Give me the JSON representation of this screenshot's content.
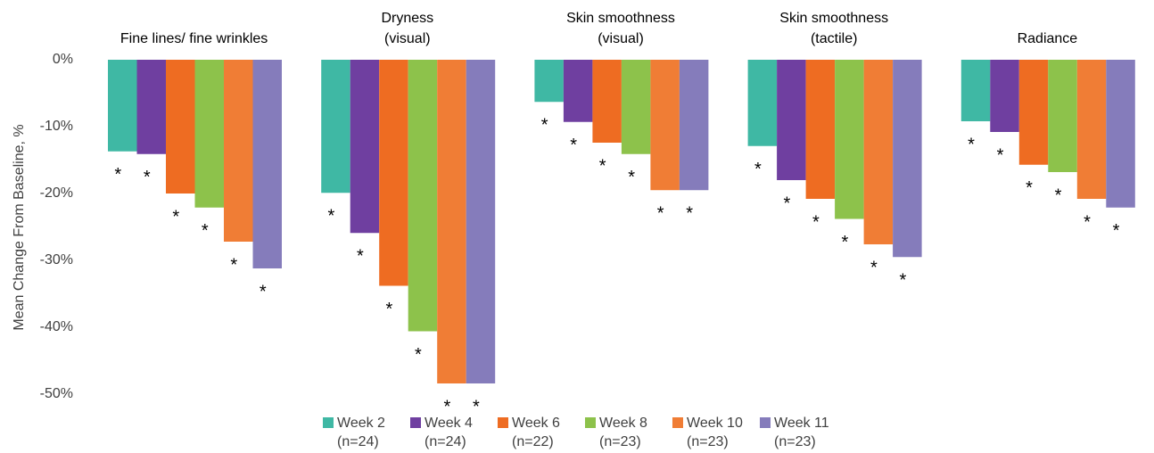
{
  "chart_data": {
    "type": "bar",
    "ylabel": "Mean Change From Baseline, %",
    "categories": [
      [
        "Fine lines/ fine wrinkles"
      ],
      [
        "Dryness",
        "(visual)"
      ],
      [
        "Skin smoothness",
        "(visual)"
      ],
      [
        "Skin smoothness",
        "(tactile)"
      ],
      [
        "Radiance"
      ]
    ],
    "series": [
      {
        "name": "Week 2",
        "n": "(n=24)",
        "color": "#3fb8a4",
        "values": [
          -13.7,
          -19.9,
          -6.3,
          -12.9,
          -9.2
        ],
        "significance": [
          "*",
          "*",
          "*",
          "*",
          "*"
        ]
      },
      {
        "name": "Week 4",
        "n": "(n=24)",
        "color": "#6f3fa0",
        "values": [
          -14.1,
          -25.9,
          -9.3,
          -18.0,
          -10.8
        ],
        "significance": [
          "*",
          "*",
          "*",
          "*",
          "*"
        ]
      },
      {
        "name": "Week 6",
        "n": "(n=22)",
        "color": "#ee6c22",
        "values": [
          -20.0,
          -33.8,
          -12.4,
          -20.8,
          -15.7
        ],
        "significance": [
          "*",
          "*",
          "*",
          "*",
          "*"
        ]
      },
      {
        "name": "Week 8",
        "n": "(n=23)",
        "color": "#8dc24b",
        "values": [
          -22.1,
          -40.6,
          -14.1,
          -23.8,
          -16.8
        ],
        "significance": [
          "*",
          "*",
          "*",
          "*",
          "*"
        ]
      },
      {
        "name": "Week 10",
        "n": "(n=23)",
        "color": "#f07d35",
        "values": [
          -27.2,
          -48.4,
          -19.5,
          -27.6,
          -20.8
        ],
        "significance": [
          "*",
          "*",
          "*",
          "*",
          "*"
        ]
      },
      {
        "name": "Week 11",
        "n": "(n=23)",
        "color": "#857cbb",
        "values": [
          -31.2,
          -48.4,
          -19.5,
          -29.5,
          -22.1
        ],
        "significance": [
          "*",
          "*",
          "*",
          "*",
          "*"
        ]
      }
    ],
    "ylim": [
      -50,
      0
    ],
    "yticks": [
      {
        "value": 0,
        "label": "0%"
      },
      {
        "value": -10,
        "label": "-10%"
      },
      {
        "value": -20,
        "label": "-20%"
      },
      {
        "value": -30,
        "label": "-30%"
      },
      {
        "value": -40,
        "label": "-40%"
      },
      {
        "value": -50,
        "label": "-50%"
      }
    ],
    "grid": false
  }
}
